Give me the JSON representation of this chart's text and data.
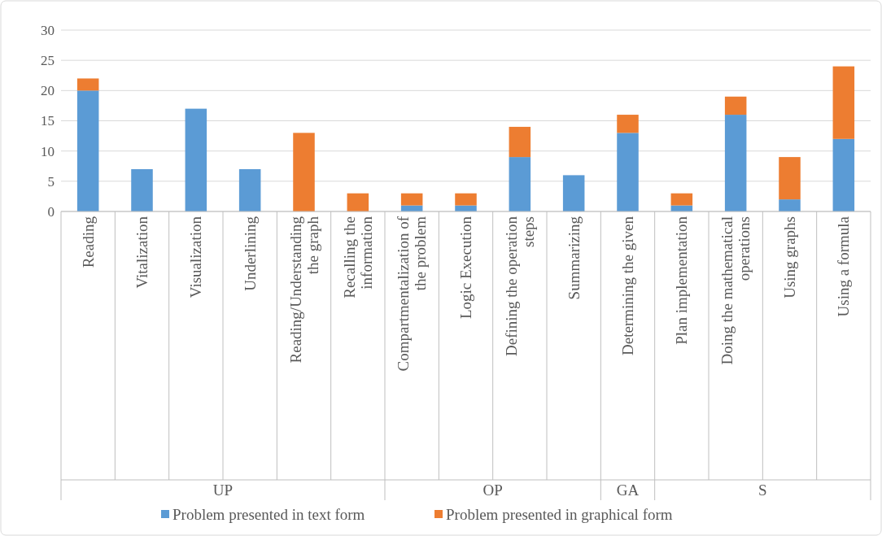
{
  "chart_data": {
    "type": "bar",
    "stacked": true,
    "categories": [
      "Reading",
      "Vitalization",
      "Visualization",
      "Underlining",
      "Reading/Understanding the graph",
      "Recalling the information",
      "Compartmentalization of the problem",
      "Logic Execution",
      "Defining the operation steps",
      "Summarizing",
      "Determining the given",
      "Plan implementation",
      "Doing the mathematical operations",
      "Using graphs",
      "Using a formula"
    ],
    "series": [
      {
        "name": "Problem presented in text form",
        "color": "#5b9bd5",
        "values": [
          20,
          7,
          17,
          7,
          0,
          0,
          1,
          1,
          9,
          6,
          13,
          1,
          16,
          2,
          12
        ]
      },
      {
        "name": "Problem presented in graphical form",
        "color": "#ed7d31",
        "values": [
          2,
          0,
          0,
          0,
          13,
          3,
          2,
          2,
          5,
          0,
          3,
          2,
          3,
          7,
          12
        ]
      }
    ],
    "ylim": [
      0,
      30
    ],
    "yticks": [
      0,
      5,
      10,
      15,
      20,
      25,
      30
    ],
    "grid": "y",
    "legend": "bottom",
    "annotations": [
      "UP",
      "OP",
      "GA",
      "S"
    ]
  }
}
